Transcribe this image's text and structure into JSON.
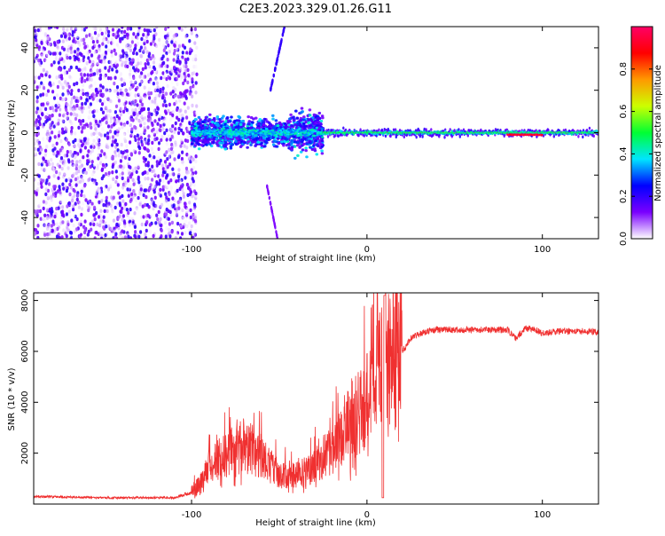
{
  "title": "C2E3.2023.329.01.26.G11",
  "colorbar": {
    "label": "Normalized spectral amplitude",
    "ticks": [
      "0.0",
      "0.2",
      "0.4",
      "0.6",
      "0.8"
    ],
    "tick_values": [
      0.0,
      0.2,
      0.4,
      0.6,
      0.8
    ],
    "range": [
      0,
      1
    ],
    "colors": [
      "#ffffff",
      "#7a00ff",
      "#0000ff",
      "#00e5ff",
      "#00ff33",
      "#ccff00",
      "#ff9900",
      "#ff0000",
      "#ff0066"
    ]
  },
  "chart_data": [
    {
      "type": "heatmap",
      "xlabel": "Height of straight line (km)",
      "ylabel": "Frequency (Hz)",
      "xlim": [
        -190,
        132
      ],
      "ylim": [
        -50,
        50
      ],
      "x_ticks": [
        "-100",
        "0",
        "100"
      ],
      "x_tick_values": [
        -100,
        0,
        100
      ],
      "y_ticks": [
        "-40",
        "-20",
        "0",
        "20",
        "40"
      ],
      "y_tick_values": [
        -40,
        -20,
        0,
        20,
        40
      ],
      "regions": [
        {
          "x_range": [
            -190,
            -97
          ],
          "freq_range": [
            -50,
            50
          ],
          "amplitude": 0.1
        },
        {
          "x_range": [
            -100,
            -25
          ],
          "freq_range": [
            -10,
            10
          ],
          "amplitude": 0.25
        },
        {
          "x_range": [
            -25,
            132
          ],
          "freq_range": [
            -3,
            3
          ],
          "amplitude": 0.4
        },
        {
          "x_range": [
            80,
            100
          ],
          "freq_range": [
            -1,
            1
          ],
          "amplitude": 0.9
        }
      ]
    },
    {
      "type": "line",
      "xlabel": "Height of straight line (km)",
      "ylabel": "SNR (10 * v/v)",
      "xlim": [
        -190,
        132
      ],
      "ylim": [
        0,
        8300
      ],
      "x_ticks": [
        "-100",
        "0",
        "100"
      ],
      "x_tick_values": [
        -100,
        0,
        100
      ],
      "y_ticks": [
        "2000",
        "4000",
        "6000",
        "8000"
      ],
      "y_tick_values": [
        2000,
        4000,
        6000,
        8000
      ],
      "color": "#f03030",
      "series": [
        {
          "x": [
            -190,
            -150,
            -110,
            -100,
            -95,
            -90,
            -85,
            -80,
            -75,
            -70,
            -65,
            -60,
            -55,
            -50,
            -45,
            -40,
            -35,
            -30,
            -25,
            -20,
            -15,
            -10,
            -5,
            0,
            5,
            8,
            10,
            12,
            15,
            20,
            25,
            30,
            35,
            40,
            50,
            60,
            70,
            80,
            85,
            90,
            95,
            100,
            110,
            120,
            132
          ],
          "y": [
            300,
            250,
            250,
            450,
            700,
            1300,
            1500,
            1700,
            1800,
            2000,
            1700,
            1600,
            1300,
            1000,
            1000,
            1050,
            1100,
            1300,
            1600,
            1800,
            2300,
            2800,
            3100,
            3600,
            4200,
            4600,
            6000,
            4800,
            5000,
            6000,
            6500,
            6700,
            6800,
            6850,
            6850,
            6850,
            6850,
            6850,
            6500,
            6900,
            6900,
            6700,
            6800,
            6800,
            6750
          ]
        }
      ]
    }
  ]
}
